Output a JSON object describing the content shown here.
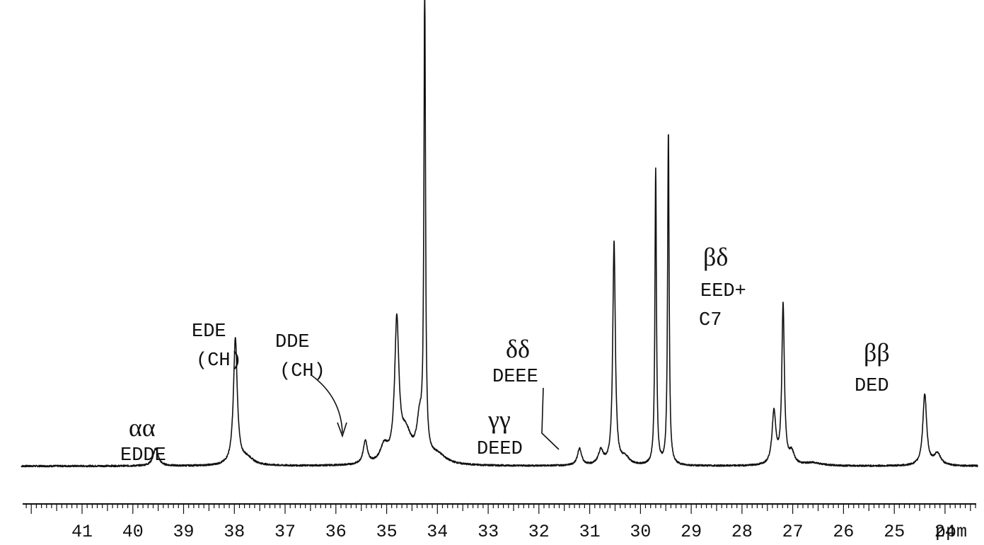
{
  "chart_data": {
    "type": "line",
    "title": "",
    "xlabel": "ppm",
    "ylabel": "",
    "x_reversed": true,
    "xlim": [
      42.2,
      21.6
    ],
    "ylim": [
      0,
      100
    ],
    "grid": false,
    "x_ticks": [
      41,
      40,
      39,
      38,
      37,
      36,
      35,
      34,
      33,
      32,
      31,
      30,
      29,
      28,
      27,
      26,
      25,
      24
    ],
    "x_tick_labels": [
      "41",
      "40",
      "39",
      "38",
      "37",
      "36",
      "35",
      "34",
      "33",
      "32",
      "31",
      "30",
      "29",
      "28",
      "27",
      "26",
      "25",
      "24"
    ],
    "unit_label": "ppm",
    "baseline": 2,
    "peaks": [
      {
        "x": 39.55,
        "y": 3.6,
        "w": 0.06
      },
      {
        "x": 37.98,
        "y": 26.5,
        "w": 0.045
      },
      {
        "x": 37.75,
        "y": 1.5,
        "w": 0.15
      },
      {
        "x": 35.42,
        "y": 4.8,
        "w": 0.05
      },
      {
        "x": 35.05,
        "y": 3.5,
        "w": 0.09
      },
      {
        "x": 34.8,
        "y": 29.0,
        "w": 0.05
      },
      {
        "x": 34.62,
        "y": 6.0,
        "w": 0.13
      },
      {
        "x": 34.35,
        "y": 8.0,
        "w": 0.07
      },
      {
        "x": 34.25,
        "y": 100.0,
        "w": 0.018
      },
      {
        "x": 34.0,
        "y": 2.0,
        "w": 0.2
      },
      {
        "x": 31.2,
        "y": 3.5,
        "w": 0.05
      },
      {
        "x": 30.78,
        "y": 3.0,
        "w": 0.06
      },
      {
        "x": 30.52,
        "y": 47.0,
        "w": 0.03
      },
      {
        "x": 30.3,
        "y": 1.5,
        "w": 0.1
      },
      {
        "x": 29.7,
        "y": 62.0,
        "w": 0.018
      },
      {
        "x": 29.45,
        "y": 70.0,
        "w": 0.018
      },
      {
        "x": 27.37,
        "y": 11.0,
        "w": 0.045
      },
      {
        "x": 27.19,
        "y": 33.5,
        "w": 0.03
      },
      {
        "x": 27.02,
        "y": 2.5,
        "w": 0.06
      },
      {
        "x": 26.6,
        "y": 0.6,
        "w": 0.2
      },
      {
        "x": 24.4,
        "y": 15.0,
        "w": 0.045
      },
      {
        "x": 24.15,
        "y": 2.5,
        "w": 0.08
      }
    ],
    "annotations": [
      {
        "greek": "αα",
        "label": "EDDE",
        "x": 39.55
      },
      {
        "line1": "EDE",
        "line2": "(CH)",
        "x": 37.98
      },
      {
        "line1": "DDE",
        "line2": "(CH)",
        "x": 35.5
      },
      {
        "greek": "δδ",
        "label": "DEEE",
        "x": 31.0
      },
      {
        "greek": "γγ",
        "label": "DEED",
        "x": 31.2
      },
      {
        "greek": "βδ",
        "line1": "EED+",
        "line2": "C7",
        "x": 27.19
      },
      {
        "greek": "ββ",
        "label": "DED",
        "x": 24.4
      }
    ]
  },
  "annotations_text": {
    "aa_greek": "αα",
    "aa_label": "EDDE",
    "ede_line1": "EDE",
    "ede_line2": "(CH)",
    "dde_line1": "DDE",
    "dde_line2": "(CH)",
    "dd_greek": "δδ",
    "dd_label": "DEEE",
    "gg_greek": "γγ",
    "gg_label": "DEED",
    "bd_greek": "βδ",
    "bd_line1": "EED+",
    "bd_line2": "C7",
    "bb_greek": "ββ",
    "bb_label": "DED"
  },
  "colors": {
    "ink": "#111111",
    "background": "#ffffff"
  }
}
